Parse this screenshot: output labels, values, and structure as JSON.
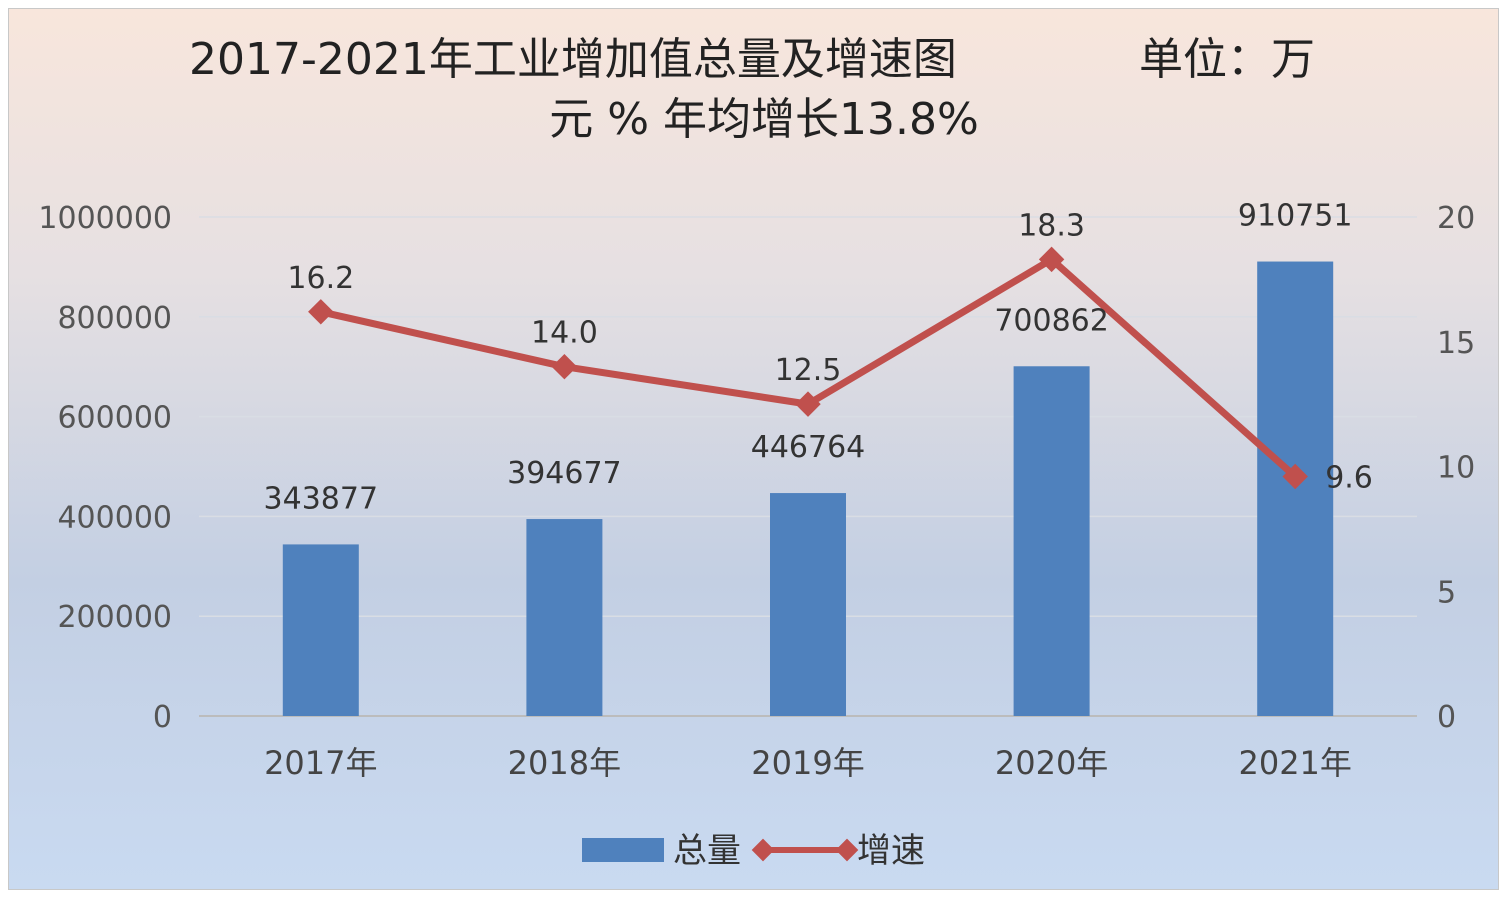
{
  "chart_data": {
    "type": "bar",
    "title_line1": "2017-2021年工业增加值总量及增速图",
    "title_unit": "单位：万",
    "title_line2": "元 % 年均增长13.8%",
    "categories": [
      "2017年",
      "2018年",
      "2019年",
      "2020年",
      "2021年"
    ],
    "series": [
      {
        "name": "总量",
        "type": "bar",
        "axis": "left",
        "color": "#4f81bd",
        "values": [
          343877,
          394677,
          446764,
          700862,
          910751
        ],
        "labels": [
          "343877",
          "394677",
          "446764",
          "700862",
          "910751"
        ]
      },
      {
        "name": "增速",
        "type": "line",
        "axis": "right",
        "color": "#c0504d",
        "values": [
          16.2,
          14.0,
          12.5,
          18.3,
          9.6
        ],
        "labels": [
          "16.2",
          "14.0",
          "12.5",
          "18.3",
          "9.6"
        ]
      }
    ],
    "y_left": {
      "min": 0,
      "max": 1000000,
      "ticks": [
        "0",
        "200000",
        "400000",
        "600000",
        "800000",
        "1000000"
      ]
    },
    "y_right": {
      "min": 0,
      "max": 20,
      "ticks": [
        "0",
        "5",
        "10",
        "15",
        "20"
      ]
    },
    "grid": true,
    "legend": "bottom"
  }
}
